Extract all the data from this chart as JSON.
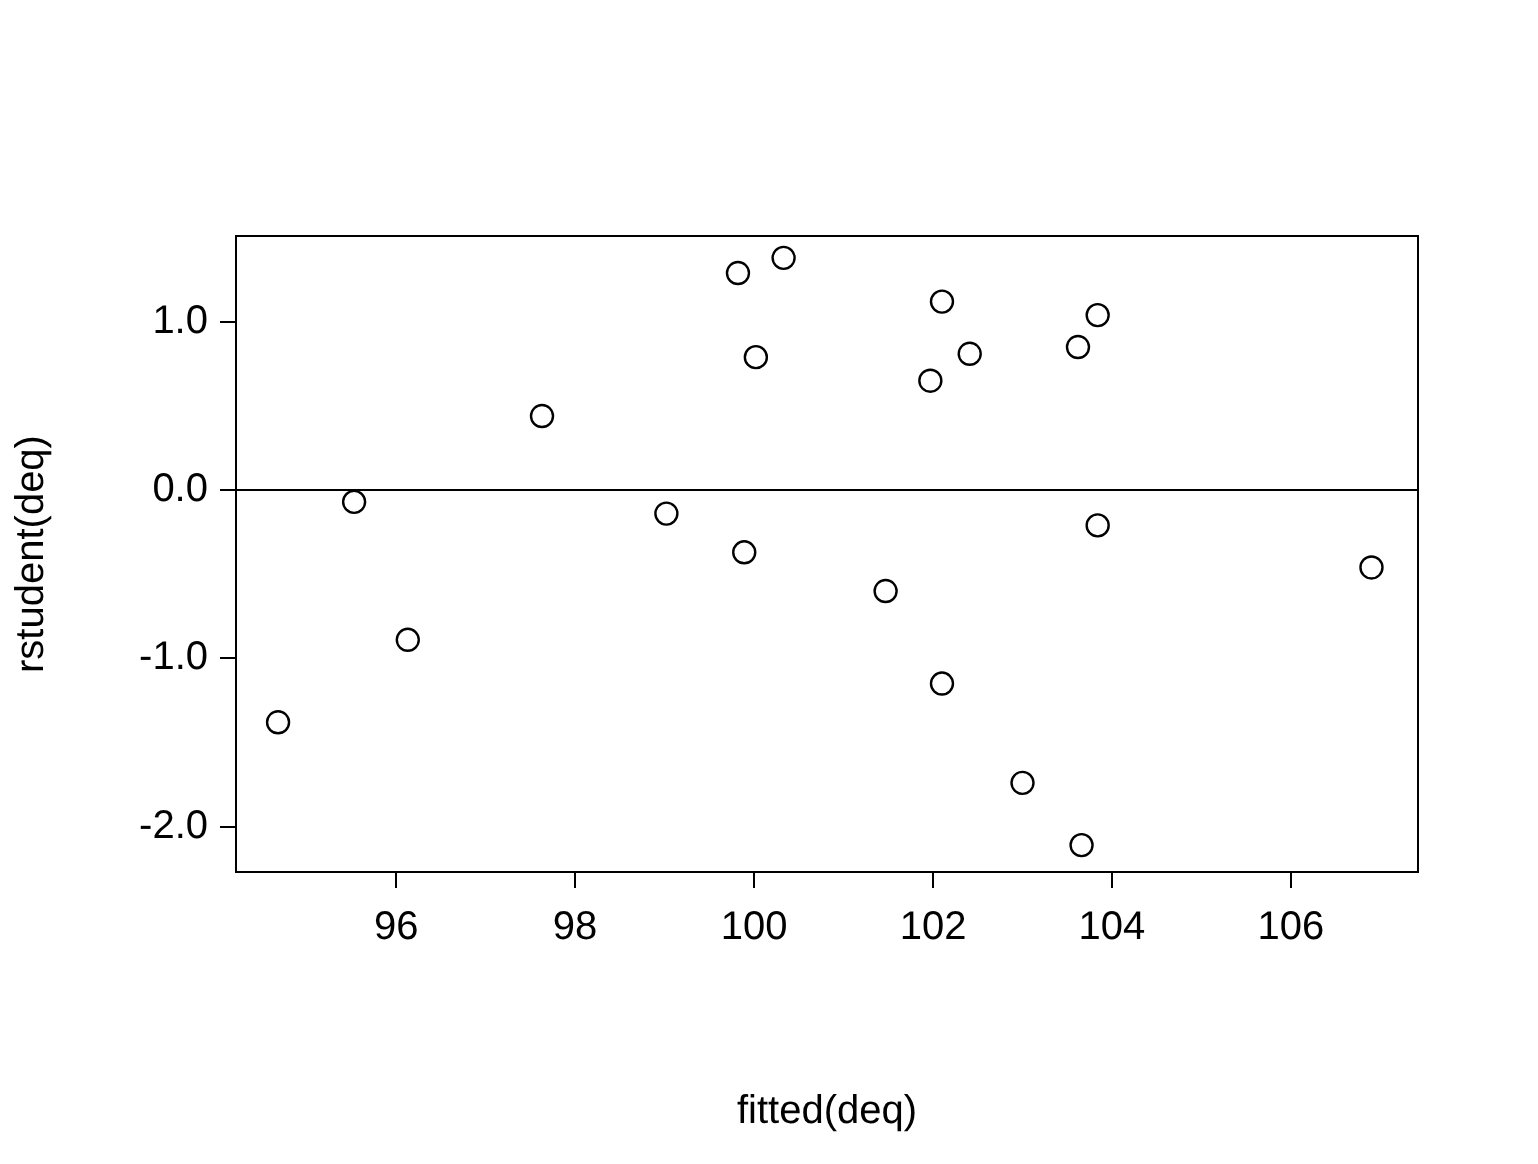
{
  "chart_data": {
    "type": "scatter",
    "xlabel": "fitted(deq)",
    "ylabel": "rstudent(deq)",
    "x": [
      94.68,
      95.53,
      96.13,
      97.63,
      99.02,
      99.82,
      99.89,
      100.02,
      100.33,
      101.47,
      101.97,
      102.1,
      102.1,
      102.41,
      103.0,
      103.62,
      103.66,
      103.84,
      103.84,
      106.9
    ],
    "series": [
      {
        "color": "#000000",
        "values": [
          -1.38,
          -0.07,
          -0.89,
          0.44,
          -0.14,
          1.29,
          -0.37,
          0.79,
          1.38,
          -0.6,
          0.65,
          1.12,
          -1.15,
          0.81,
          -1.74,
          0.85,
          -2.11,
          1.04,
          -0.21,
          -0.46
        ]
      }
    ],
    "xlim": [
      94.21,
      107.42
    ],
    "ylim": [
      -2.27,
      1.51
    ],
    "xticks": [
      96,
      98,
      100,
      102,
      104,
      106
    ],
    "yticks": [
      {
        "value": -2,
        "label": "-2.0"
      },
      {
        "value": -1,
        "label": "-1.0"
      },
      {
        "value": 0,
        "label": "0.0"
      },
      {
        "value": 1,
        "label": "1.0"
      }
    ],
    "ref_lines": [
      {
        "axis": "y",
        "value": 0,
        "color": "#000000"
      }
    ],
    "grid": false,
    "legend": false,
    "marker": "circle"
  }
}
